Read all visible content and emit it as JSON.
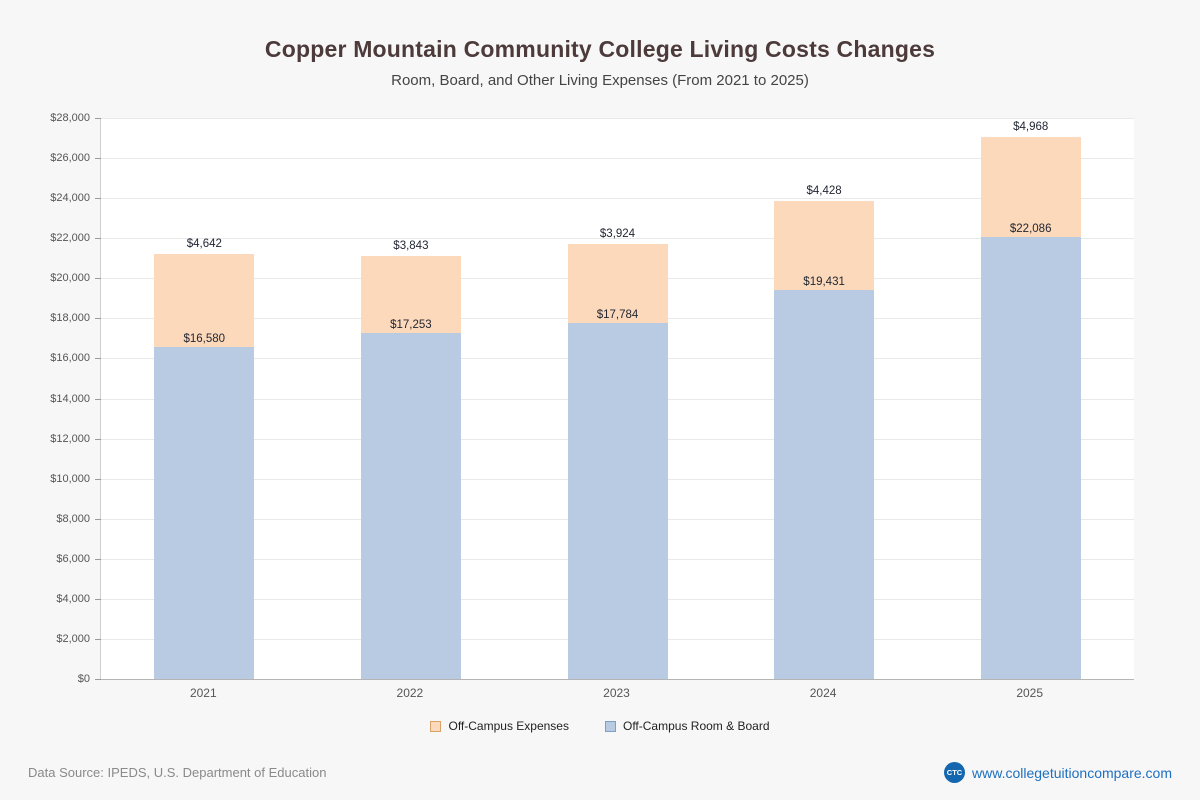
{
  "header": {
    "title": "Copper Mountain Community College Living Costs Changes",
    "subtitle": "Room, Board, and Other Living Expenses (From 2021 to 2025)"
  },
  "chart_data": {
    "type": "bar",
    "stacked": true,
    "categories": [
      "2021",
      "2022",
      "2023",
      "2024",
      "2025"
    ],
    "series": [
      {
        "name": "Off-Campus Room & Board",
        "color": "#b9cbe3",
        "border_color": "#7f9fc6",
        "values": [
          16580,
          17253,
          17784,
          19431,
          22086
        ]
      },
      {
        "name": "Off-Campus Expenses",
        "color": "#fcd9bb",
        "border_color": "#d9a26b",
        "values": [
          4642,
          3843,
          3924,
          4428,
          4968
        ]
      }
    ],
    "value_labels": {
      "room_board": [
        "$16,580",
        "$17,253",
        "$17,784",
        "$19,431",
        "$22,086"
      ],
      "expenses": [
        "$4,642",
        "$3,843",
        "$3,924",
        "$4,428",
        "$4,968"
      ]
    },
    "title": "Copper Mountain Community College Living Costs Changes",
    "xlabel": "",
    "ylabel": "",
    "ylim": [
      0,
      28000
    ],
    "ytick_step": 2000,
    "grid": true,
    "legend_position": "bottom"
  },
  "legend": {
    "items": [
      {
        "label": "Off-Campus Expenses",
        "color": "#fcd9bb",
        "border": "#d9a26b"
      },
      {
        "label": "Off-Campus Room & Board",
        "color": "#b9cbe3",
        "border": "#7f9fc6"
      }
    ]
  },
  "footer": {
    "source": "Data Source: IPEDS, U.S. Department of Education",
    "logo": "CTC",
    "site": "www.collegetuitioncompare.com"
  }
}
